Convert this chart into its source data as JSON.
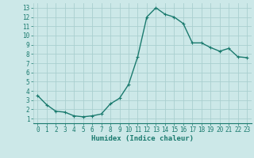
{
  "x": [
    0,
    1,
    2,
    3,
    4,
    5,
    6,
    7,
    8,
    9,
    10,
    11,
    12,
    13,
    14,
    15,
    16,
    17,
    18,
    19,
    20,
    21,
    22,
    23
  ],
  "y": [
    3.5,
    2.5,
    1.8,
    1.7,
    1.3,
    1.2,
    1.3,
    1.5,
    2.6,
    3.2,
    4.7,
    7.7,
    12.0,
    13.0,
    12.3,
    12.0,
    11.3,
    9.2,
    9.2,
    8.7,
    8.3,
    8.6,
    7.7,
    7.6
  ],
  "line_color": "#1a7a6e",
  "marker_color": "#1a7a6e",
  "bg_color": "#cce8e8",
  "grid_color": "#aacfcf",
  "xlabel": "Humidex (Indice chaleur)",
  "xlim": [
    -0.5,
    23.5
  ],
  "ylim": [
    0.5,
    13.5
  ],
  "yticks": [
    1,
    2,
    3,
    4,
    5,
    6,
    7,
    8,
    9,
    10,
    11,
    12,
    13
  ],
  "xticks": [
    0,
    1,
    2,
    3,
    4,
    5,
    6,
    7,
    8,
    9,
    10,
    11,
    12,
    13,
    14,
    15,
    16,
    17,
    18,
    19,
    20,
    21,
    22,
    23
  ],
  "marker_size": 3.0,
  "line_width": 1.0,
  "tick_font_size": 5.5,
  "xlabel_font_size": 6.5
}
